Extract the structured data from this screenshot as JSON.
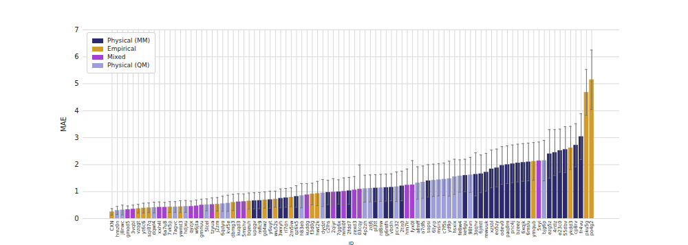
{
  "chart_data": {
    "type": "bar",
    "x_label": "ID",
    "y_label": "MAE",
    "categories": [
      "CXN",
      "hmz0n",
      "j8nwc",
      "gmod5",
      "3vqbi",
      "vzqgt",
      "yt6c6",
      "sqi07q",
      "dqwl4",
      "xxh4l",
      "6a7u8",
      "7vk5p",
      "7agvc",
      "ywmt3",
      "hdjxu",
      "qyzjx",
      "w6jta",
      "gmnuu",
      "5lcel",
      "tzyua",
      "j2zm",
      "6qdyo",
      "kvl5e",
      "dbmg3",
      "kuqd3",
      "5mshv",
      "bqeuh",
      "upqgv",
      "mfic9",
      "gd4wz",
      "y6uyt",
      "wu52s",
      "3wxyh",
      "rl7dn",
      "2m5iw",
      "qz6k5",
      "h83eb",
      "kuddg",
      "f3d0g",
      "hwt2k",
      "dydzt",
      "c2lhs",
      "2qiyr",
      "7gg6x",
      "mmi0f",
      "2fdd7",
      "zexd3",
      "03cqy",
      "4p2zh",
      "zdjfj",
      "pl3tt",
      "rd8nw",
      "g6mfh",
      "vbdih",
      "pcv32",
      "2tis0",
      "hm7lr",
      "fyx0l",
      "afmff",
      "o7dfs",
      "sopsi",
      "6tyip",
      "msirs",
      "c7f5s",
      "yd9p",
      "hsxix",
      "fe8w4",
      "ke6gu",
      "98tvn",
      "3oqhv",
      "6jmtt",
      "mwuuk",
      "xzsbl",
      "eo5zy",
      "odev0",
      "paq0m",
      "pnc4j",
      "bzeez",
      "6xqjk",
      "6mslu",
      "ymqub",
      "5xyi",
      "bjg6p",
      "ezg5z",
      "4ntlz",
      "e23c0",
      "55dbv",
      "ykdd3",
      "cp8rv",
      "fr4vu",
      "pku5g",
      "po4g2"
    ],
    "series": [
      {
        "name": "Physical (MM)",
        "color": "#2b2a6b",
        "values": [
          null,
          null,
          null,
          null,
          null,
          null,
          null,
          null,
          null,
          null,
          null,
          null,
          null,
          null,
          null,
          null,
          null,
          null,
          null,
          null,
          null,
          null,
          null,
          null,
          null,
          null,
          null,
          0.66,
          0.67,
          null,
          0.7,
          null,
          0.75,
          0.77,
          null,
          0.82,
          null,
          null,
          null,
          null,
          null,
          0.97,
          null,
          0.99,
          null,
          1.03,
          null,
          null,
          null,
          null,
          1.13,
          null,
          1.15,
          1.16,
          null,
          1.21,
          null,
          null,
          null,
          null,
          1.4,
          null,
          null,
          null,
          null,
          null,
          null,
          1.6,
          null,
          1.64,
          1.66,
          1.72,
          1.84,
          1.88,
          1.97,
          2.0,
          2.03,
          2.06,
          2.08,
          2.1,
          null,
          null,
          null,
          2.4,
          2.45,
          2.52,
          2.56,
          null,
          2.72,
          3.04,
          null,
          null
        ],
        "errors": [
          null,
          null,
          null,
          null,
          null,
          null,
          null,
          null,
          null,
          null,
          null,
          null,
          null,
          null,
          null,
          null,
          null,
          null,
          null,
          null,
          null,
          null,
          null,
          null,
          null,
          null,
          null,
          0.3,
          0.3,
          null,
          0.32,
          null,
          0.35,
          0.35,
          null,
          0.4,
          null,
          null,
          null,
          null,
          null,
          0.45,
          null,
          0.45,
          null,
          0.5,
          null,
          null,
          null,
          null,
          0.5,
          null,
          0.5,
          0.5,
          null,
          0.55,
          null,
          null,
          null,
          null,
          0.6,
          null,
          null,
          null,
          null,
          null,
          null,
          0.6,
          null,
          0.8,
          0.7,
          0.7,
          0.7,
          0.7,
          0.7,
          0.7,
          0.7,
          0.7,
          0.7,
          0.7,
          null,
          null,
          null,
          0.9,
          0.85,
          0.8,
          0.85,
          null,
          0.8,
          0.85,
          null,
          null
        ]
      },
      {
        "name": "Empirical",
        "color": "#d29b2c",
        "values": [
          0.25,
          null,
          null,
          null,
          null,
          0.37,
          0.39,
          0.4,
          null,
          null,
          null,
          0.43,
          null,
          0.44,
          null,
          null,
          null,
          null,
          null,
          null,
          0.53,
          null,
          null,
          0.6,
          null,
          null,
          0.65,
          null,
          null,
          0.69,
          null,
          0.72,
          null,
          null,
          0.79,
          null,
          null,
          null,
          0.91,
          0.93,
          null,
          null,
          null,
          null,
          null,
          null,
          null,
          null,
          null,
          null,
          null,
          null,
          null,
          null,
          null,
          null,
          null,
          null,
          null,
          null,
          null,
          null,
          null,
          null,
          null,
          null,
          null,
          null,
          null,
          null,
          null,
          null,
          null,
          null,
          null,
          null,
          null,
          null,
          null,
          null,
          2.12,
          null,
          null,
          null,
          null,
          null,
          null,
          2.62,
          null,
          null,
          4.68,
          5.15
        ],
        "errors": [
          0.12,
          null,
          null,
          null,
          null,
          0.16,
          0.18,
          0.18,
          null,
          null,
          null,
          0.2,
          null,
          0.22,
          null,
          null,
          null,
          null,
          null,
          null,
          0.25,
          null,
          null,
          0.3,
          null,
          null,
          0.3,
          null,
          null,
          0.3,
          null,
          0.3,
          null,
          null,
          0.35,
          null,
          null,
          null,
          0.4,
          0.45,
          null,
          null,
          null,
          null,
          null,
          null,
          null,
          null,
          null,
          null,
          null,
          null,
          null,
          null,
          null,
          null,
          null,
          null,
          null,
          null,
          null,
          null,
          null,
          null,
          null,
          null,
          null,
          null,
          null,
          null,
          null,
          null,
          null,
          null,
          null,
          null,
          null,
          null,
          null,
          null,
          0.7,
          null,
          null,
          null,
          null,
          null,
          null,
          0.8,
          null,
          null,
          0.85,
          1.1
        ]
      },
      {
        "name": "Mixed",
        "color": "#a63fd4",
        "values": [
          null,
          null,
          null,
          0.33,
          0.35,
          null,
          null,
          null,
          null,
          0.42,
          0.42,
          null,
          null,
          null,
          null,
          0.45,
          0.47,
          0.5,
          null,
          0.52,
          null,
          null,
          null,
          null,
          0.62,
          0.63,
          null,
          null,
          null,
          null,
          null,
          null,
          null,
          null,
          null,
          null,
          null,
          0.88,
          null,
          null,
          null,
          null,
          0.98,
          null,
          1.01,
          null,
          1.06,
          1.09,
          null,
          null,
          null,
          null,
          null,
          null,
          null,
          null,
          1.24,
          1.25,
          null,
          null,
          null,
          null,
          null,
          null,
          null,
          null,
          null,
          null,
          null,
          null,
          null,
          null,
          null,
          null,
          null,
          null,
          null,
          null,
          null,
          null,
          null,
          2.14,
          null,
          null,
          null,
          null,
          null,
          null,
          null,
          null,
          null,
          null
        ],
        "errors": [
          null,
          null,
          null,
          0.14,
          0.15,
          null,
          null,
          null,
          null,
          0.2,
          0.18,
          null,
          null,
          null,
          null,
          0.2,
          0.22,
          0.22,
          null,
          0.25,
          null,
          null,
          null,
          null,
          0.3,
          0.28,
          null,
          null,
          null,
          null,
          null,
          null,
          null,
          null,
          null,
          null,
          null,
          0.42,
          null,
          null,
          null,
          null,
          0.5,
          null,
          0.5,
          null,
          0.5,
          0.9,
          null,
          null,
          null,
          null,
          null,
          null,
          null,
          null,
          0.6,
          0.9,
          null,
          null,
          null,
          null,
          null,
          null,
          null,
          null,
          null,
          null,
          null,
          null,
          null,
          null,
          null,
          null,
          null,
          null,
          null,
          null,
          null,
          null,
          null,
          0.7,
          null,
          null,
          null,
          null,
          null,
          null,
          null,
          null,
          null,
          null
        ]
      },
      {
        "name": "Physical (QM)",
        "color": "#9d9fd8",
        "values": [
          null,
          0.3,
          0.32,
          null,
          null,
          null,
          null,
          null,
          0.41,
          null,
          null,
          null,
          0.43,
          null,
          0.45,
          null,
          null,
          null,
          0.51,
          null,
          null,
          0.55,
          0.57,
          null,
          null,
          null,
          null,
          null,
          null,
          null,
          null,
          null,
          null,
          null,
          null,
          null,
          0.85,
          null,
          null,
          null,
          0.95,
          null,
          null,
          null,
          null,
          null,
          null,
          null,
          1.11,
          1.12,
          null,
          1.14,
          null,
          null,
          1.18,
          null,
          null,
          null,
          1.32,
          1.35,
          null,
          1.42,
          1.44,
          1.46,
          1.48,
          1.55,
          1.58,
          null,
          1.62,
          null,
          null,
          null,
          null,
          null,
          null,
          null,
          null,
          null,
          null,
          null,
          null,
          null,
          2.15,
          null,
          null,
          null,
          null,
          null,
          null,
          null,
          null,
          null
        ],
        "errors": [
          null,
          0.15,
          0.18,
          null,
          null,
          null,
          null,
          null,
          0.2,
          null,
          null,
          null,
          0.2,
          null,
          0.22,
          null,
          null,
          null,
          0.22,
          null,
          null,
          0.28,
          0.3,
          null,
          null,
          null,
          null,
          null,
          null,
          null,
          null,
          null,
          null,
          null,
          null,
          null,
          0.45,
          null,
          null,
          null,
          0.5,
          null,
          null,
          null,
          null,
          null,
          null,
          null,
          0.5,
          0.5,
          null,
          0.5,
          null,
          null,
          0.55,
          null,
          null,
          null,
          0.6,
          0.6,
          null,
          0.6,
          0.6,
          0.6,
          0.65,
          0.65,
          0.6,
          null,
          0.65,
          null,
          null,
          null,
          null,
          null,
          null,
          null,
          null,
          null,
          null,
          null,
          null,
          null,
          0.75,
          null,
          null,
          null,
          null,
          null,
          null,
          null,
          null,
          null
        ]
      }
    ],
    "ylim": [
      0,
      7
    ],
    "yticks": [
      0,
      1,
      2,
      3,
      4,
      5,
      6,
      7
    ],
    "grid": true,
    "legend": "upper left"
  }
}
